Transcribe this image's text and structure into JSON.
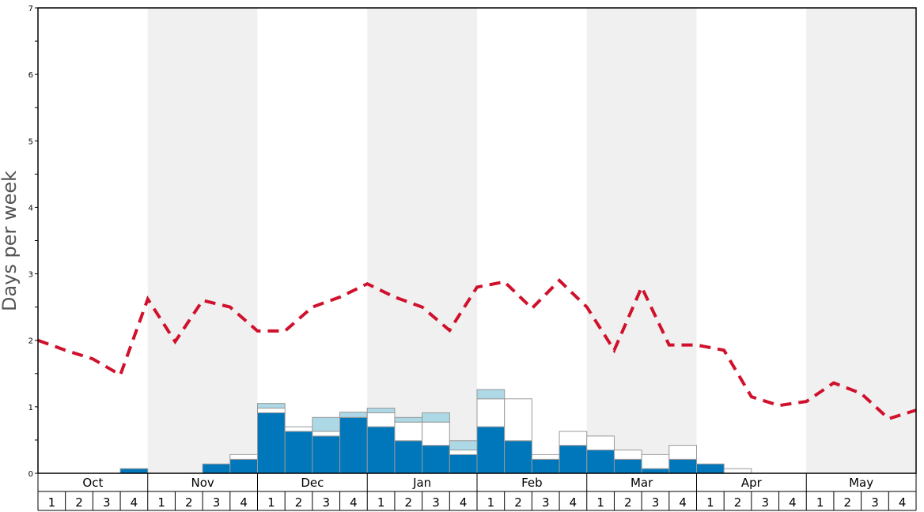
{
  "chart_data": {
    "type": "bar",
    "ylabel": "Days per week",
    "ylim": [
      0,
      7
    ],
    "yticks": [
      "0",
      "1",
      "2",
      "3",
      "4",
      "5",
      "6",
      "7"
    ],
    "months": [
      "Oct",
      "Nov",
      "Dec",
      "Jan",
      "Feb",
      "Mar",
      "Apr",
      "May"
    ],
    "week_labels": [
      "1",
      "2",
      "3",
      "4"
    ],
    "shaded_months": [
      "Nov",
      "Jan",
      "Mar",
      "May"
    ],
    "colors": {
      "shade": "#f0f0f0",
      "bar_dark": "#0077bb",
      "bar_light": "#add8e6",
      "bar_white": "#ffffff",
      "bar_stroke": "#999999",
      "line": "#d0112b"
    },
    "bars": [
      {
        "week": "Oct 1",
        "dark": 0,
        "white": 0,
        "light": 0
      },
      {
        "week": "Oct 2",
        "dark": 0,
        "white": 0,
        "light": 0
      },
      {
        "week": "Oct 3",
        "dark": 0,
        "white": 0,
        "light": 0
      },
      {
        "week": "Oct 4",
        "dark": 0.07,
        "white": 0,
        "light": 0
      },
      {
        "week": "Nov 1",
        "dark": 0,
        "white": 0,
        "light": 0
      },
      {
        "week": "Nov 2",
        "dark": 0,
        "white": 0,
        "light": 0
      },
      {
        "week": "Nov 3",
        "dark": 0.14,
        "white": 0,
        "light": 0
      },
      {
        "week": "Nov 4",
        "dark": 0.21,
        "white": 0.07,
        "light": 0
      },
      {
        "week": "Dec 1",
        "dark": 0.91,
        "white": 0.07,
        "light": 0.07
      },
      {
        "week": "Dec 2",
        "dark": 0.63,
        "white": 0.07,
        "light": 0
      },
      {
        "week": "Dec 3",
        "dark": 0.56,
        "white": 0.07,
        "light": 0.21
      },
      {
        "week": "Dec 4",
        "dark": 0.84,
        "white": 0,
        "light": 0.08
      },
      {
        "week": "Jan 1",
        "dark": 0.7,
        "white": 0.21,
        "light": 0.07
      },
      {
        "week": "Jan 2",
        "dark": 0.49,
        "white": 0.28,
        "light": 0.07
      },
      {
        "week": "Jan 3",
        "dark": 0.42,
        "white": 0.35,
        "light": 0.14
      },
      {
        "week": "Jan 4",
        "dark": 0.28,
        "white": 0.07,
        "light": 0.14
      },
      {
        "week": "Feb 1",
        "dark": 0.7,
        "white": 0.42,
        "light": 0.14
      },
      {
        "week": "Feb 2",
        "dark": 0.49,
        "white": 0.63,
        "light": 0
      },
      {
        "week": "Feb 3",
        "dark": 0.21,
        "white": 0.07,
        "light": 0
      },
      {
        "week": "Feb 4",
        "dark": 0.42,
        "white": 0.21,
        "light": 0
      },
      {
        "week": "Mar 1",
        "dark": 0.35,
        "white": 0.21,
        "light": 0
      },
      {
        "week": "Mar 2",
        "dark": 0.21,
        "white": 0.14,
        "light": 0
      },
      {
        "week": "Mar 3",
        "dark": 0.07,
        "white": 0.21,
        "light": 0
      },
      {
        "week": "Mar 4",
        "dark": 0.21,
        "white": 0.21,
        "light": 0
      },
      {
        "week": "Apr 1",
        "dark": 0.14,
        "white": 0,
        "light": 0
      },
      {
        "week": "Apr 2",
        "dark": 0,
        "white": 0.07,
        "light": 0
      },
      {
        "week": "Apr 3",
        "dark": 0,
        "white": 0,
        "light": 0
      },
      {
        "week": "Apr 4",
        "dark": 0,
        "white": 0,
        "light": 0
      },
      {
        "week": "May 1",
        "dark": 0,
        "white": 0,
        "light": 0
      },
      {
        "week": "May 2",
        "dark": 0,
        "white": 0,
        "light": 0
      },
      {
        "week": "May 3",
        "dark": 0,
        "white": 0,
        "light": 0
      },
      {
        "week": "May 4",
        "dark": 0,
        "white": 0,
        "light": 0
      }
    ],
    "line": [
      2.0,
      1.85,
      1.72,
      1.48,
      2.62,
      1.98,
      2.6,
      2.5,
      2.14,
      2.14,
      2.5,
      2.65,
      2.85,
      2.65,
      2.5,
      2.15,
      2.8,
      2.88,
      2.48,
      2.9,
      2.5,
      1.85,
      2.8,
      1.93,
      1.93,
      1.85,
      1.15,
      1.02,
      1.08,
      1.36,
      1.2,
      0.82,
      0.95
    ],
    "grid": false,
    "legend": "none"
  }
}
